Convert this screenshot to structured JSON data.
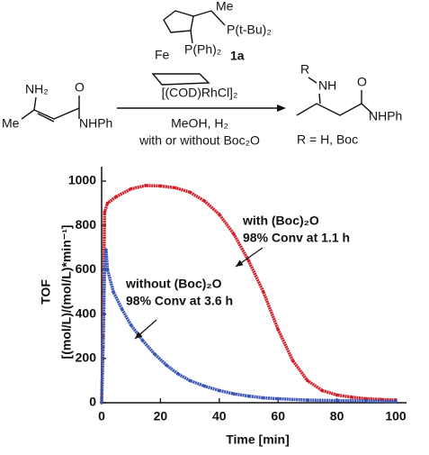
{
  "scheme": {
    "ligand": {
      "me": "Me",
      "ptbu": "P(t-Bu)₂",
      "fe": "Fe",
      "pph": "P(Ph)₂",
      "label": "1a"
    },
    "catalyst": "[(COD)RhCl]₂",
    "conditions": "MeOH, H₂",
    "additive": "with or without Boc₂O",
    "substrate": {
      "nh2": "NH₂",
      "o": "O",
      "me": "Me",
      "nhph": "NHPh"
    },
    "product": {
      "r": "R",
      "nh": "NH",
      "o": "O",
      "nhph": "NHPh",
      "rdef": "R = H, Boc"
    }
  },
  "chart_data": {
    "type": "scatter",
    "xlabel": "Time [min]",
    "ylabel": [
      "TOF",
      "[(mol/L)/(mol/L)*min⁻¹]"
    ],
    "xlim": [
      0,
      100
    ],
    "xticks": [
      0,
      20,
      40,
      60,
      80,
      100
    ],
    "ylim": [
      0,
      1000
    ],
    "yticks": [
      0,
      200,
      400,
      600,
      800,
      1000
    ],
    "series": [
      {
        "name": "with (Boc)₂O",
        "color": "#d0202a",
        "annotation": "98% Conv at 1.1 h",
        "x": [
          0,
          0.5,
          1,
          2,
          5,
          10,
          15,
          20,
          25,
          30,
          35,
          40,
          45,
          50,
          55,
          60,
          65,
          70,
          75,
          80,
          85,
          90,
          95,
          100
        ],
        "values": [
          0,
          300,
          860,
          900,
          930,
          965,
          980,
          978,
          970,
          950,
          910,
          850,
          760,
          640,
          500,
          330,
          190,
          100,
          55,
          35,
          25,
          18,
          15,
          12
        ]
      },
      {
        "name": "without (Boc)₂O",
        "color": "#3a55b4",
        "annotation": "98% Conv at  3.6 h",
        "x": [
          0,
          0.5,
          1,
          1.5,
          2,
          4,
          7,
          10,
          14,
          18,
          22,
          26,
          30,
          35,
          40,
          45,
          50,
          55,
          60,
          70,
          80,
          90,
          100
        ],
        "values": [
          0,
          250,
          600,
          690,
          600,
          500,
          420,
          350,
          280,
          220,
          170,
          130,
          100,
          75,
          55,
          40,
          30,
          22,
          18,
          12,
          10,
          8,
          6
        ]
      }
    ]
  }
}
